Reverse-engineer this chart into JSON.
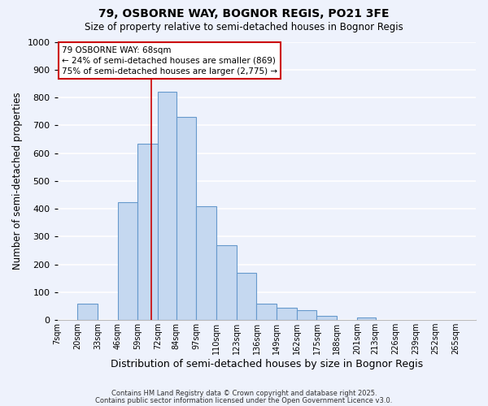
{
  "title": "79, OSBORNE WAY, BOGNOR REGIS, PO21 3FE",
  "subtitle": "Size of property relative to semi-detached houses in Bognor Regis",
  "xlabel": "Distribution of semi-detached houses by size in Bognor Regis",
  "ylabel": "Number of semi-detached properties",
  "bin_labels": [
    "7sqm",
    "20sqm",
    "33sqm",
    "46sqm",
    "59sqm",
    "72sqm",
    "84sqm",
    "97sqm",
    "110sqm",
    "123sqm",
    "136sqm",
    "149sqm",
    "162sqm",
    "175sqm",
    "188sqm",
    "201sqm",
    "213sqm",
    "226sqm",
    "239sqm",
    "252sqm",
    "265sqm"
  ],
  "bar_values": [
    0,
    60,
    0,
    425,
    635,
    820,
    730,
    410,
    270,
    170,
    60,
    45,
    35,
    15,
    0,
    10,
    0,
    0,
    0,
    0,
    0
  ],
  "bar_color": "#c5d8f0",
  "bar_edge_color": "#6699cc",
  "background_color": "#eef2fc",
  "grid_color": "#ffffff",
  "annotation_text": "79 OSBORNE WAY: 68sqm\n← 24% of semi-detached houses are smaller (869)\n75% of semi-detached houses are larger (2,775) →",
  "annotation_box_color": "#ffffff",
  "annotation_box_edge_color": "#cc0000",
  "vline_x": 68,
  "vline_color": "#cc0000",
  "ylim": [
    0,
    1000
  ],
  "bin_edges": [
    7,
    20,
    33,
    46,
    59,
    72,
    84,
    97,
    110,
    123,
    136,
    149,
    162,
    175,
    188,
    201,
    213,
    226,
    239,
    252,
    265,
    278
  ],
  "footer_line1": "Contains HM Land Registry data © Crown copyright and database right 2025.",
  "footer_line2": "Contains public sector information licensed under the Open Government Licence v3.0."
}
